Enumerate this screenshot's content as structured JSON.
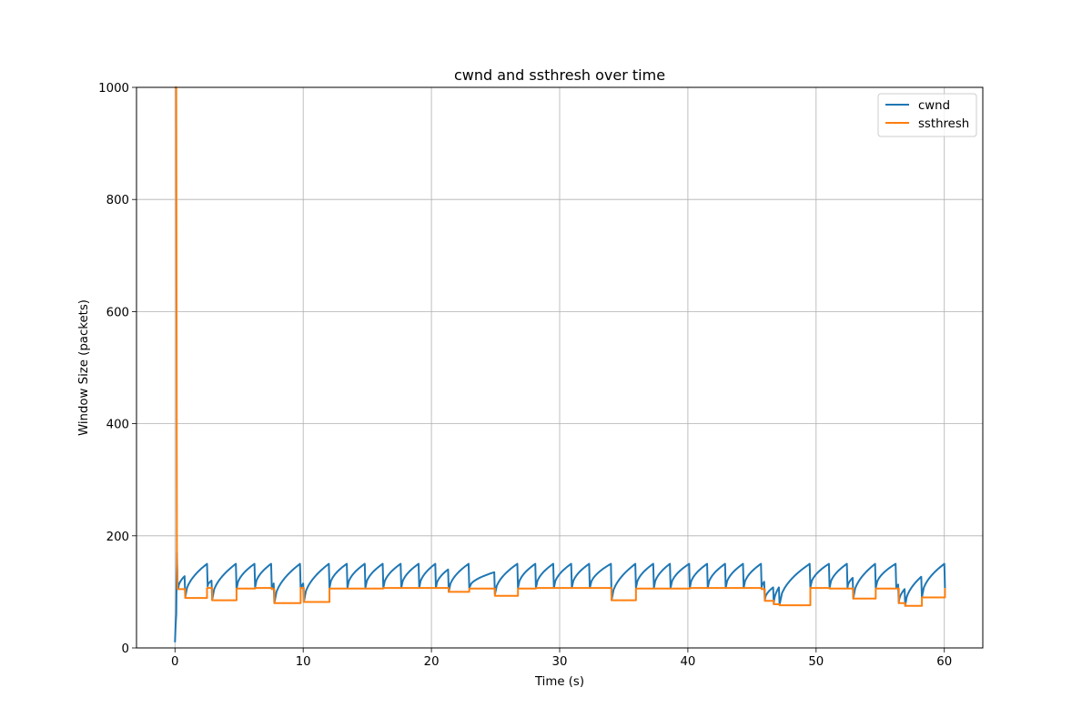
{
  "chart_data": {
    "type": "line",
    "title": "cwnd and ssthresh over time",
    "xlabel": "Time (s)",
    "ylabel": "Window Size (packets)",
    "xlim": [
      -3,
      63
    ],
    "ylim": [
      0,
      1000
    ],
    "xticks": [
      0,
      10,
      20,
      30,
      40,
      50,
      60
    ],
    "yticks": [
      0,
      200,
      400,
      600,
      800,
      1000
    ],
    "xtick_labels": [
      "0",
      "10",
      "20",
      "30",
      "40",
      "50",
      "60"
    ],
    "ytick_labels": [
      "0",
      "200",
      "400",
      "600",
      "800",
      "1000"
    ],
    "grid": true,
    "legend_position": "top-right",
    "series": [
      {
        "name": "cwnd",
        "color": "#1f77b4",
        "curve": "concave",
        "points": [
          [
            0.0,
            10
          ],
          [
            0.05,
            40
          ],
          [
            0.1,
            60
          ],
          [
            0.15,
            170
          ],
          [
            0.2,
            120
          ],
          [
            0.25,
            105
          ],
          [
            0.75,
            128
          ],
          [
            0.8,
            90
          ],
          [
            2.5,
            150
          ],
          [
            2.55,
            110
          ],
          [
            2.85,
            120
          ],
          [
            2.9,
            86
          ],
          [
            4.75,
            150
          ],
          [
            4.8,
            105
          ],
          [
            6.2,
            150
          ],
          [
            6.25,
            108
          ],
          [
            7.5,
            150
          ],
          [
            7.55,
            107
          ],
          [
            7.7,
            115
          ],
          [
            7.75,
            80
          ],
          [
            9.75,
            150
          ],
          [
            9.8,
            108
          ],
          [
            10.0,
            115
          ],
          [
            10.05,
            82
          ],
          [
            12.0,
            150
          ],
          [
            12.05,
            107
          ],
          [
            13.4,
            150
          ],
          [
            13.45,
            107
          ],
          [
            14.8,
            150
          ],
          [
            14.85,
            107
          ],
          [
            16.2,
            150
          ],
          [
            16.25,
            107
          ],
          [
            17.6,
            150
          ],
          [
            17.65,
            107
          ],
          [
            19.0,
            150
          ],
          [
            19.05,
            107
          ],
          [
            20.3,
            150
          ],
          [
            20.35,
            107
          ],
          [
            21.3,
            140
          ],
          [
            21.35,
            100
          ],
          [
            22.9,
            150
          ],
          [
            22.95,
            107
          ],
          [
            24.9,
            135
          ],
          [
            24.95,
            95
          ],
          [
            26.7,
            150
          ],
          [
            26.75,
            107
          ],
          [
            28.1,
            150
          ],
          [
            28.15,
            107
          ],
          [
            29.5,
            150
          ],
          [
            29.55,
            107
          ],
          [
            30.9,
            150
          ],
          [
            30.95,
            107
          ],
          [
            32.3,
            150
          ],
          [
            32.35,
            107
          ],
          [
            34.0,
            150
          ],
          [
            34.05,
            85
          ],
          [
            35.9,
            150
          ],
          [
            35.95,
            107
          ],
          [
            37.3,
            150
          ],
          [
            37.35,
            107
          ],
          [
            38.6,
            150
          ],
          [
            38.65,
            107
          ],
          [
            40.1,
            150
          ],
          [
            40.15,
            107
          ],
          [
            41.5,
            150
          ],
          [
            41.55,
            107
          ],
          [
            42.9,
            150
          ],
          [
            42.95,
            107
          ],
          [
            44.3,
            150
          ],
          [
            44.35,
            107
          ],
          [
            45.7,
            150
          ],
          [
            45.75,
            107
          ],
          [
            45.95,
            118
          ],
          [
            46.0,
            85
          ],
          [
            46.65,
            108
          ],
          [
            46.7,
            78
          ],
          [
            47.1,
            108
          ],
          [
            47.15,
            77
          ],
          [
            49.5,
            150
          ],
          [
            49.55,
            108
          ],
          [
            51.0,
            150
          ],
          [
            51.05,
            107
          ],
          [
            52.4,
            150
          ],
          [
            52.45,
            107
          ],
          [
            52.85,
            125
          ],
          [
            52.9,
            88
          ],
          [
            54.6,
            150
          ],
          [
            54.65,
            107
          ],
          [
            56.2,
            150
          ],
          [
            56.25,
            107
          ],
          [
            56.4,
            113
          ],
          [
            56.45,
            80
          ],
          [
            56.9,
            105
          ],
          [
            56.95,
            75
          ],
          [
            58.2,
            127
          ],
          [
            58.25,
            90
          ],
          [
            60.0,
            150
          ],
          [
            60.05,
            107
          ]
        ]
      },
      {
        "name": "ssthresh",
        "color": "#ff7f0e",
        "curve": "step",
        "points": [
          [
            0.0,
            1000
          ],
          [
            0.1,
            1000
          ],
          [
            0.15,
            160
          ],
          [
            0.2,
            105
          ],
          [
            0.8,
            105
          ],
          [
            0.8,
            89
          ],
          [
            2.5,
            89
          ],
          [
            2.5,
            107
          ],
          [
            2.9,
            107
          ],
          [
            2.9,
            85
          ],
          [
            4.8,
            85
          ],
          [
            4.8,
            106
          ],
          [
            6.25,
            106
          ],
          [
            6.25,
            107
          ],
          [
            7.55,
            107
          ],
          [
            7.55,
            105
          ],
          [
            7.75,
            105
          ],
          [
            7.75,
            80
          ],
          [
            9.8,
            80
          ],
          [
            9.8,
            107
          ],
          [
            10.05,
            107
          ],
          [
            10.05,
            82
          ],
          [
            12.05,
            82
          ],
          [
            12.05,
            106
          ],
          [
            16.25,
            106
          ],
          [
            16.25,
            107
          ],
          [
            21.35,
            107
          ],
          [
            21.35,
            100
          ],
          [
            22.95,
            100
          ],
          [
            22.95,
            106
          ],
          [
            24.95,
            106
          ],
          [
            24.95,
            93
          ],
          [
            26.75,
            93
          ],
          [
            26.75,
            106
          ],
          [
            28.15,
            106
          ],
          [
            28.15,
            107
          ],
          [
            34.05,
            107
          ],
          [
            34.05,
            85
          ],
          [
            35.95,
            85
          ],
          [
            35.95,
            106
          ],
          [
            40.15,
            106
          ],
          [
            40.15,
            107
          ],
          [
            45.75,
            107
          ],
          [
            45.75,
            105
          ],
          [
            46.0,
            105
          ],
          [
            46.0,
            84
          ],
          [
            46.7,
            84
          ],
          [
            46.7,
            78
          ],
          [
            47.15,
            78
          ],
          [
            47.15,
            76
          ],
          [
            49.55,
            76
          ],
          [
            49.55,
            107
          ],
          [
            51.05,
            107
          ],
          [
            51.05,
            106
          ],
          [
            52.9,
            106
          ],
          [
            52.9,
            88
          ],
          [
            54.65,
            88
          ],
          [
            54.65,
            106
          ],
          [
            56.45,
            106
          ],
          [
            56.45,
            80
          ],
          [
            56.95,
            80
          ],
          [
            56.95,
            75
          ],
          [
            58.25,
            75
          ],
          [
            58.25,
            90
          ],
          [
            60.05,
            90
          ],
          [
            60.05,
            107
          ]
        ]
      }
    ]
  }
}
